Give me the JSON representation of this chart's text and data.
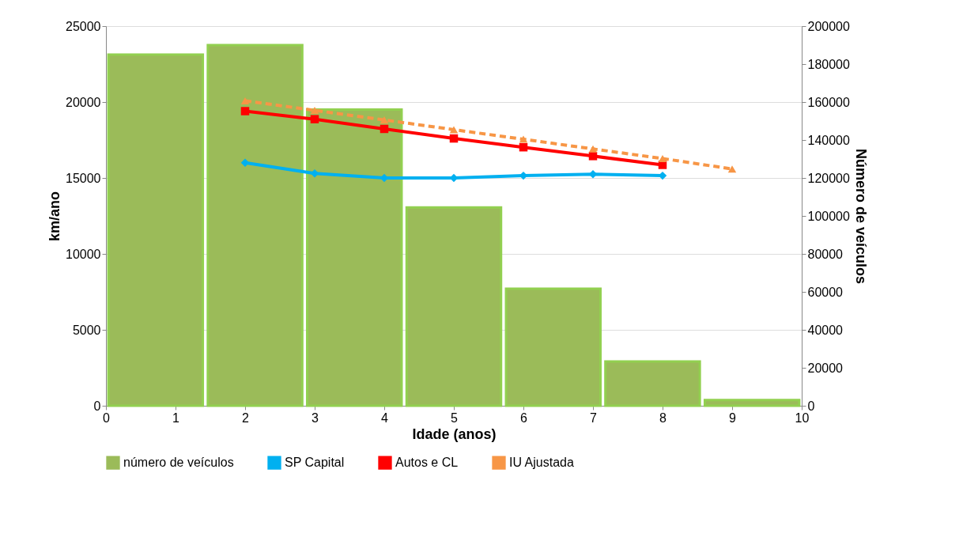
{
  "chart_data": {
    "type": "line",
    "xlabel": "Idade (anos)",
    "ylabel": "km/ano",
    "y2label": "Número de veículos",
    "xlim": [
      0,
      10
    ],
    "xticks": [
      0,
      1,
      2,
      3,
      4,
      5,
      6,
      7,
      8,
      9,
      10
    ],
    "ylim": [
      0,
      25000
    ],
    "yticks": [
      0,
      5000,
      10000,
      15000,
      20000,
      25000
    ],
    "y2lim": [
      0,
      200000
    ],
    "y2ticks": [
      0,
      20000,
      40000,
      60000,
      80000,
      100000,
      120000,
      140000,
      160000,
      180000,
      200000
    ],
    "grid": "y",
    "legend": "bottom",
    "series": [
      {
        "name": "número de veículos",
        "type": "bar",
        "axis": "y2",
        "color": "#9bbb59",
        "x": [
          0.714,
          2.143,
          3.571,
          5,
          6.429,
          7.857,
          9.286
        ],
        "values": [
          185000,
          190000,
          156000,
          104500,
          61700,
          23300,
          3000
        ]
      },
      {
        "name": "SP Capital",
        "color": "#00b0f0",
        "marker": "diamond",
        "line_style": "solid",
        "x": [
          2,
          3,
          4,
          5,
          6,
          7,
          8
        ],
        "values": [
          16000,
          15300,
          15000,
          15000,
          15150,
          15250,
          15150
        ]
      },
      {
        "name": "Autos e CL",
        "color": "#ff0000",
        "marker": "square",
        "line_style": "solid",
        "x": [
          2,
          3,
          4,
          5,
          6,
          7,
          8
        ],
        "values": [
          19400,
          18870,
          18230,
          17600,
          17020,
          16440,
          15860
        ]
      },
      {
        "name": "IU Ajustada",
        "color": "#f79646",
        "marker": "triangle",
        "line_style": "dashed",
        "x": [
          2,
          3,
          4,
          5,
          6,
          7,
          8,
          9
        ],
        "values": [
          20080,
          19450,
          18820,
          18180,
          17550,
          16910,
          16280,
          15590
        ]
      }
    ]
  }
}
